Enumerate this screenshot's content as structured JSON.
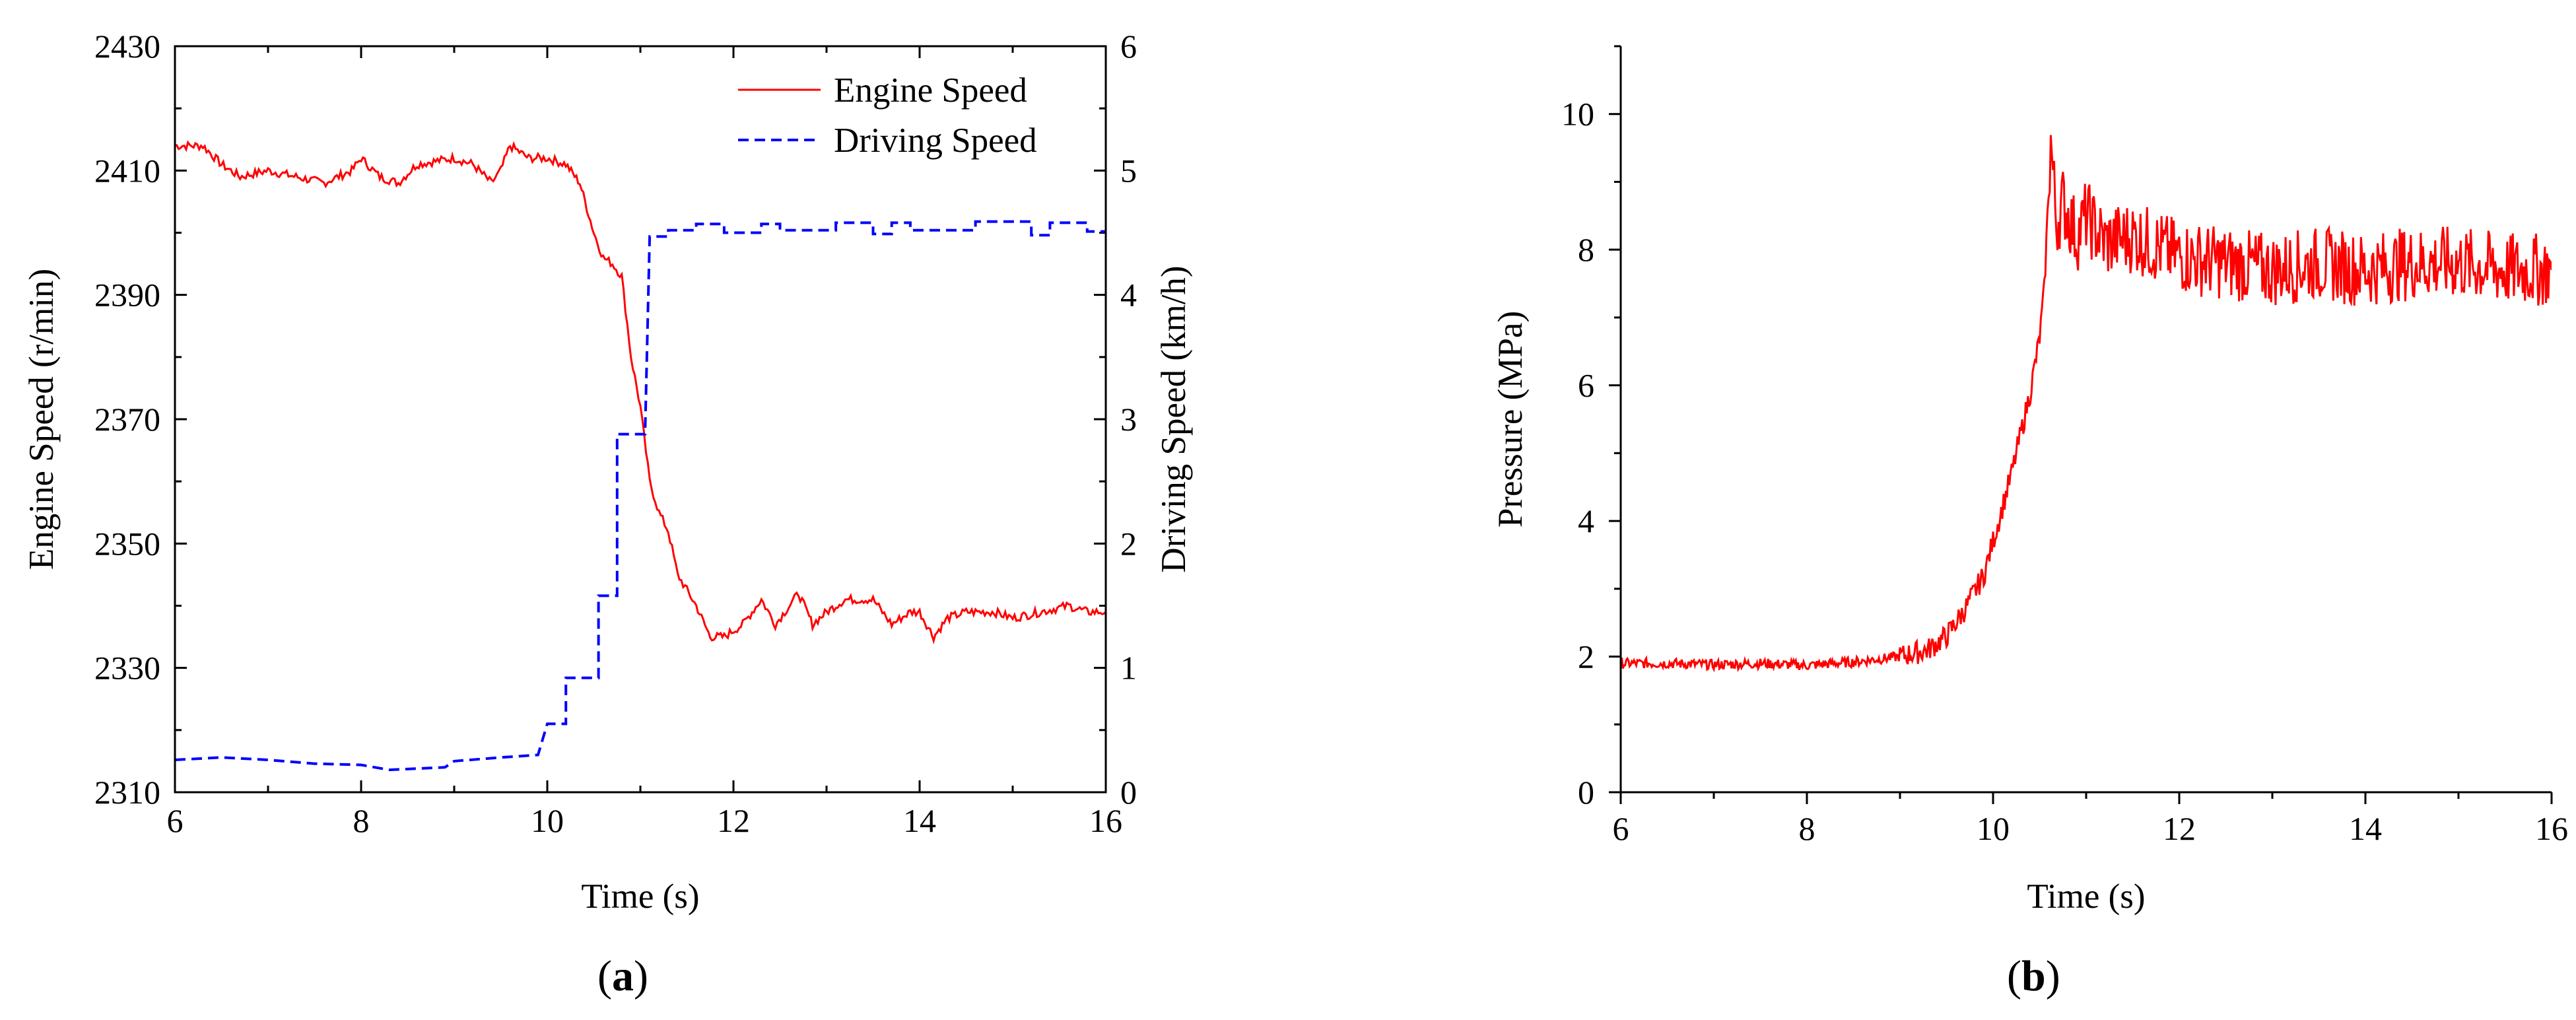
{
  "chart_data": [
    {
      "panel": "a",
      "type": "line",
      "panel_label_open": "(",
      "panel_label_letter": "a",
      "panel_label_close": ")",
      "xlabel": "Time (s)",
      "ylabel": "Engine Speed (r/min)",
      "ylabel_right": "Driving Speed (km/h)",
      "xlim": [
        6,
        16
      ],
      "ylim": [
        2310,
        2430
      ],
      "ylim_right": [
        0,
        6
      ],
      "xticks": [
        6,
        8,
        10,
        12,
        14,
        16
      ],
      "yticks": [
        2310,
        2330,
        2350,
        2370,
        2390,
        2410,
        2430
      ],
      "yticks_right": [
        0,
        1,
        2,
        3,
        4,
        5,
        6
      ],
      "legend_position": "top-right",
      "series": [
        {
          "name": "Engine Speed",
          "axis": "left",
          "style": "solid",
          "color": "#ff0000",
          "points": [
            [
              6.0,
              2414
            ],
            [
              6.3,
              2414
            ],
            [
              6.5,
              2411
            ],
            [
              6.7,
              2409
            ],
            [
              7.0,
              2410
            ],
            [
              7.3,
              2409
            ],
            [
              7.6,
              2408
            ],
            [
              7.9,
              2410
            ],
            [
              8.0,
              2412
            ],
            [
              8.2,
              2409
            ],
            [
              8.4,
              2408
            ],
            [
              8.6,
              2411
            ],
            [
              9.0,
              2412
            ],
            [
              9.2,
              2411
            ],
            [
              9.4,
              2408
            ],
            [
              9.5,
              2410
            ],
            [
              9.6,
              2414
            ],
            [
              9.8,
              2412
            ],
            [
              10.0,
              2412
            ],
            [
              10.2,
              2411
            ],
            [
              10.35,
              2408
            ],
            [
              10.5,
              2400
            ],
            [
              10.6,
              2396
            ],
            [
              10.7,
              2395
            ],
            [
              10.8,
              2393
            ],
            [
              10.9,
              2380
            ],
            [
              11.0,
              2372
            ],
            [
              11.1,
              2360
            ],
            [
              11.2,
              2355
            ],
            [
              11.3,
              2352
            ],
            [
              11.4,
              2345
            ],
            [
              11.6,
              2340
            ],
            [
              11.75,
              2335
            ],
            [
              11.9,
              2335
            ],
            [
              12.1,
              2337
            ],
            [
              12.3,
              2341
            ],
            [
              12.45,
              2337
            ],
            [
              12.55,
              2339
            ],
            [
              12.7,
              2342
            ],
            [
              12.85,
              2337
            ],
            [
              13.0,
              2339
            ],
            [
              13.2,
              2341
            ],
            [
              13.5,
              2341
            ],
            [
              13.7,
              2337
            ],
            [
              13.9,
              2339
            ],
            [
              14.0,
              2339
            ],
            [
              14.15,
              2335
            ],
            [
              14.3,
              2338
            ],
            [
              14.5,
              2339
            ],
            [
              14.8,
              2339
            ],
            [
              15.0,
              2338
            ],
            [
              15.3,
              2339
            ],
            [
              15.6,
              2340
            ],
            [
              15.8,
              2339
            ],
            [
              16.0,
              2339
            ]
          ]
        },
        {
          "name": "Driving Speed",
          "axis": "right",
          "style": "dashed",
          "color": "#0000ff",
          "points": [
            [
              6.0,
              0.26
            ],
            [
              6.5,
              0.28
            ],
            [
              7.0,
              0.26
            ],
            [
              7.5,
              0.23
            ],
            [
              8.0,
              0.22
            ],
            [
              8.3,
              0.18
            ],
            [
              8.9,
              0.2
            ],
            [
              9.0,
              0.25
            ],
            [
              9.5,
              0.28
            ],
            [
              9.9,
              0.3
            ],
            [
              10.0,
              0.55
            ],
            [
              10.2,
              0.55
            ],
            [
              10.2,
              0.92
            ],
            [
              10.55,
              0.92
            ],
            [
              10.55,
              1.58
            ],
            [
              10.75,
              1.58
            ],
            [
              10.75,
              2.88
            ],
            [
              11.05,
              2.88
            ],
            [
              11.1,
              4.47
            ],
            [
              11.3,
              4.47
            ],
            [
              11.3,
              4.52
            ],
            [
              11.6,
              4.52
            ],
            [
              11.6,
              4.57
            ],
            [
              11.9,
              4.57
            ],
            [
              11.9,
              4.5
            ],
            [
              12.3,
              4.5
            ],
            [
              12.3,
              4.57
            ],
            [
              12.5,
              4.57
            ],
            [
              12.5,
              4.52
            ],
            [
              13.1,
              4.52
            ],
            [
              13.1,
              4.58
            ],
            [
              13.5,
              4.58
            ],
            [
              13.5,
              4.49
            ],
            [
              13.7,
              4.49
            ],
            [
              13.7,
              4.58
            ],
            [
              13.9,
              4.58
            ],
            [
              13.9,
              4.52
            ],
            [
              14.6,
              4.52
            ],
            [
              14.6,
              4.59
            ],
            [
              15.2,
              4.59
            ],
            [
              15.2,
              4.48
            ],
            [
              15.4,
              4.48
            ],
            [
              15.4,
              4.58
            ],
            [
              15.8,
              4.58
            ],
            [
              15.8,
              4.51
            ],
            [
              16.0,
              4.51
            ]
          ]
        }
      ]
    },
    {
      "panel": "b",
      "type": "line",
      "panel_label_open": "(",
      "panel_label_letter": "b",
      "panel_label_close": ")",
      "xlabel": "Time (s)",
      "ylabel": "Pressure (MPa)",
      "xlim": [
        6,
        16
      ],
      "ylim": [
        0,
        11
      ],
      "xticks": [
        6,
        8,
        10,
        12,
        14,
        16
      ],
      "yticks": [
        0,
        2,
        4,
        6,
        8,
        10
      ],
      "series": [
        {
          "name": "Pressure",
          "style": "solid",
          "color": "#ff0000",
          "points": [
            [
              6.0,
              1.9
            ],
            [
              6.5,
              1.9
            ],
            [
              7.0,
              1.88
            ],
            [
              7.5,
              1.9
            ],
            [
              8.0,
              1.87
            ],
            [
              8.5,
              1.92
            ],
            [
              9.0,
              2.0
            ],
            [
              9.3,
              2.1
            ],
            [
              9.5,
              2.3
            ],
            [
              9.7,
              2.7
            ],
            [
              9.9,
              3.2
            ],
            [
              10.0,
              3.7
            ],
            [
              10.1,
              4.2
            ],
            [
              10.2,
              4.7
            ],
            [
              10.3,
              5.3
            ],
            [
              10.4,
              5.9
            ],
            [
              10.5,
              6.7
            ],
            [
              10.55,
              7.4
            ],
            [
              10.62,
              9.6
            ],
            [
              10.68,
              8.4
            ],
            [
              10.75,
              8.7
            ],
            [
              10.9,
              8.2
            ],
            [
              11.0,
              8.5
            ],
            [
              11.2,
              8.1
            ],
            [
              11.5,
              8.2
            ],
            [
              12.0,
              7.9
            ],
            [
              12.5,
              7.8
            ],
            [
              13.0,
              7.7
            ],
            [
              13.5,
              7.8
            ],
            [
              14.0,
              7.7
            ],
            [
              14.5,
              7.8
            ],
            [
              15.0,
              7.8
            ],
            [
              15.5,
              7.7
            ],
            [
              16.0,
              7.7
            ]
          ]
        }
      ]
    }
  ]
}
